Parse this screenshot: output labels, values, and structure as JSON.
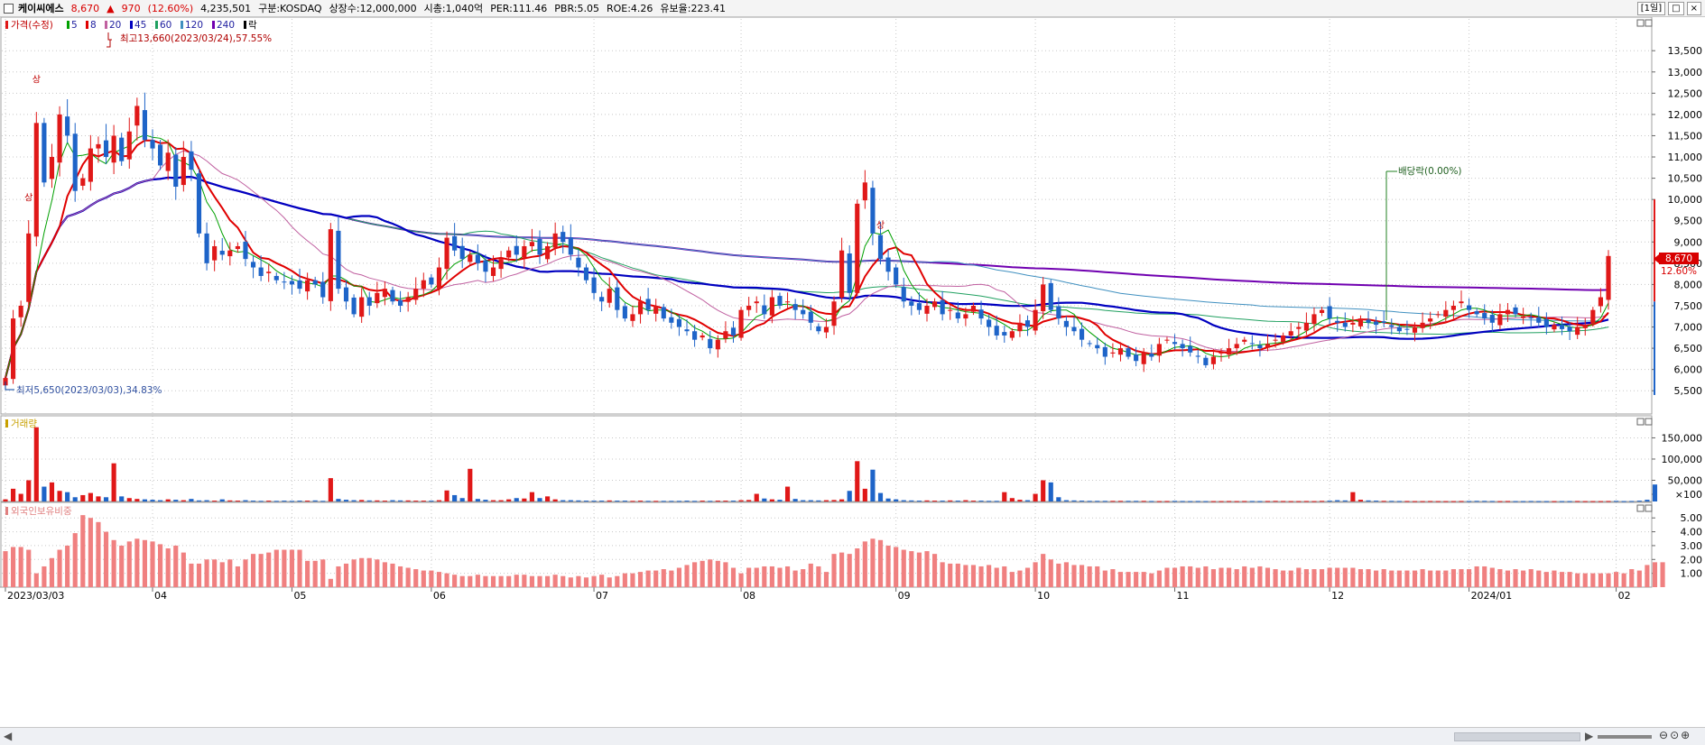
{
  "header": {
    "name": "케이씨에스",
    "price": "8,670",
    "change_arrow": "▲",
    "change": "970",
    "change_pct": "(12.60%)",
    "volume": "4,235,501",
    "market": "구분:KOSDAQ",
    "shares": "상장수:12,000,000",
    "mcap": "시총:1,040억",
    "per": "PER:111.46",
    "pbr": "PBR:5.05",
    "roe": "ROE:4.26",
    "float": "유보율:223.41",
    "period": "[1일]"
  },
  "legend": {
    "price": "가격(수정)",
    "items": [
      {
        "label": "5",
        "color": "#00a000"
      },
      {
        "label": "8",
        "color": "#e00000"
      },
      {
        "label": "20",
        "color": "#c060a0"
      },
      {
        "label": "45",
        "color": "#0000c0"
      },
      {
        "label": "60",
        "color": "#20a060"
      },
      {
        "label": "120",
        "color": "#4090c0"
      },
      {
        "label": "240",
        "color": "#7000b0"
      },
      {
        "label": "락",
        "color": "#000000"
      }
    ]
  },
  "annotations": {
    "high": "최고13,660(2023/03/24),57.55%",
    "low": "최저5,650(2023/03/03),34.83%",
    "dividend": "배당락(0.00%)",
    "limit_up": "상"
  },
  "panels": {
    "volume_title": "거래량",
    "foreign_title": "외국인보유비중"
  },
  "current_price_label": "8,670",
  "current_pct_label": "12.60%",
  "colors": {
    "up": "#e01818",
    "down": "#1e64c8",
    "grid": "#c8c8c8",
    "bar_foreign": "#f08080"
  },
  "chart_data": [
    {
      "type": "candlestick",
      "title": "가격(수정)",
      "y_ticks": [
        "5,500",
        "6,000",
        "6,500",
        "7,000",
        "7,500",
        "8,000",
        "8,500",
        "9,000",
        "9,500",
        "10,000",
        "10,500",
        "11,000",
        "11,500",
        "12,000",
        "12,500",
        "13,000",
        "13,500"
      ],
      "ylim": [
        5250,
        13950
      ],
      "x_labels": [
        "2023/03/03",
        "04",
        "05",
        "06",
        "07",
        "08",
        "09",
        "10",
        "11",
        "12",
        "2024/01",
        "02"
      ],
      "x_label_index": [
        0,
        19,
        37,
        55,
        76,
        95,
        115,
        133,
        151,
        171,
        189,
        208
      ],
      "closes": [
        5800,
        7200,
        7500,
        9200,
        11800,
        10400,
        11000,
        12000,
        11500,
        10200,
        10500,
        11200,
        11300,
        11000,
        11500,
        10900,
        11600,
        12200,
        11400,
        11200,
        10800,
        11100,
        10300,
        11000,
        10700,
        9200,
        8500,
        8900,
        8700,
        8800,
        8900,
        8600,
        8400,
        8200,
        8300,
        8100,
        8050,
        8000,
        7900,
        8100,
        8000,
        7700,
        9300,
        7900,
        7600,
        7300,
        7700,
        7500,
        7800,
        7900,
        7600,
        7500,
        7700,
        7900,
        8100,
        8000,
        8400,
        9100,
        8800,
        8600,
        8700,
        8500,
        8300,
        8400,
        8600,
        8800,
        8700,
        8900,
        9000,
        8700,
        8900,
        9200,
        9000,
        8700,
        8400,
        8100,
        7800,
        7600,
        7900,
        7400,
        7200,
        7300,
        7600,
        7400,
        7500,
        7200,
        7100,
        7000,
        6900,
        6700,
        6800,
        6500,
        6700,
        6900,
        6800,
        7400,
        7500,
        7600,
        7300,
        7700,
        7500,
        7600,
        7400,
        7300,
        7100,
        6900,
        7000,
        7600,
        8800,
        7800,
        9900,
        10400,
        9200,
        8600,
        8300,
        8000,
        7600,
        7500,
        7400,
        7500,
        7600,
        7300,
        7400,
        7200,
        7300,
        7500,
        7200,
        7000,
        6800,
        6800,
        6900,
        7100,
        7000,
        7400,
        8000,
        7400,
        7200,
        7000,
        6900,
        6700,
        6600,
        6500,
        6300,
        6400,
        6500,
        6300,
        6200,
        6400,
        6300,
        6600,
        6700,
        6600,
        6500,
        6400,
        6300,
        6100,
        6300,
        6400,
        6500,
        6600,
        6700,
        6600,
        6500,
        6600,
        6700,
        6800,
        6900,
        7000,
        7100,
        7300,
        7400,
        7200,
        7100,
        7000,
        7100,
        7200,
        7100,
        7050,
        7100,
        7000,
        6900,
        6950,
        7000,
        7100,
        7200,
        7300,
        7400,
        7500,
        7600,
        7400,
        7300,
        7200,
        7100,
        7300,
        7400,
        7300,
        7250,
        7200,
        7100,
        7000,
        7050,
        6950,
        6900,
        7000,
        7050,
        7400,
        7700,
        8670
      ],
      "limit_up_index": [
        4,
        3,
        113
      ]
    },
    {
      "type": "bar",
      "title": "거래량",
      "y_ticks": [
        "150,000",
        "100,000",
        "50,000",
        "×100"
      ],
      "ylim": [
        0,
        185000
      ],
      "values": [
        5000,
        30000,
        18000,
        50000,
        175000,
        35000,
        45000,
        25000,
        22000,
        10000,
        15000,
        20000,
        12000,
        10000,
        90000,
        12000,
        8000,
        6000,
        5000,
        4000,
        3000,
        5000,
        4000,
        3000,
        6000,
        2500,
        3000,
        2000,
        5000,
        2500,
        2000,
        3000,
        2000,
        1500,
        2000,
        1500,
        2000,
        1500,
        2000,
        2000,
        2500,
        1500,
        55000,
        6000,
        4000,
        3000,
        3500,
        2500,
        2500,
        2000,
        3000,
        2500,
        2500,
        2000,
        2000,
        2000,
        3000,
        26000,
        15000,
        8000,
        77000,
        6000,
        4000,
        3000,
        3000,
        5000,
        8000,
        7000,
        22000,
        8000,
        12000,
        5000,
        3000,
        3000,
        2500,
        2000,
        2000,
        2000,
        2500,
        2000,
        2000,
        1500,
        2000,
        1500,
        1500,
        1500,
        1500,
        1500,
        2000,
        1500,
        2000,
        1500,
        2000,
        2000,
        2000,
        3000,
        3500,
        18000,
        7000,
        5000,
        4000,
        35000,
        6000,
        3000,
        3000,
        2500,
        3000,
        3500,
        5000,
        25000,
        95000,
        30000,
        75000,
        20000,
        7000,
        5000,
        3000,
        2500,
        2000,
        2500,
        2000,
        2000,
        2500,
        2000,
        3000,
        2000,
        2000,
        1500,
        1500,
        22000,
        8000,
        4000,
        3000,
        18000,
        50000,
        45000,
        10000,
        3000,
        2500,
        2000,
        1500,
        1500,
        1500,
        1500,
        1500,
        1500,
        1500,
        1500,
        1200,
        1000,
        1200,
        1500,
        1200,
        1000,
        1200,
        1000,
        1000,
        1000,
        1200,
        1000,
        1200,
        1200,
        1000,
        1200,
        1500,
        1200,
        1000,
        1000,
        1200,
        1000,
        1500,
        2000,
        3000,
        2500,
        22000,
        4000,
        2500,
        2000,
        1500,
        1500,
        1200,
        1200,
        1000,
        1000,
        1200,
        1000,
        1000,
        1000,
        1200,
        1200,
        1500,
        1500,
        1200,
        1000,
        1200,
        1000,
        1000,
        1200,
        1000,
        1000,
        1000,
        1000,
        1000,
        1200,
        1000,
        1000,
        1000,
        1200,
        1500,
        1000,
        1200,
        2000,
        4000,
        40000
      ]
    },
    {
      "type": "bar",
      "title": "외국인보유비중",
      "y_ticks": [
        "5.00",
        "4.00",
        "3.00",
        "2.00",
        "1.00"
      ],
      "ylim": [
        0,
        5.6
      ],
      "values": [
        2.6,
        2.9,
        2.9,
        2.7,
        1.0,
        1.5,
        2.1,
        2.7,
        3.0,
        3.9,
        5.2,
        5.0,
        4.7,
        4.0,
        3.4,
        3.0,
        3.3,
        3.5,
        3.4,
        3.3,
        3.1,
        2.8,
        3.0,
        2.5,
        1.7,
        1.7,
        2.0,
        2.0,
        1.8,
        2.0,
        1.5,
        2.0,
        2.4,
        2.4,
        2.5,
        2.7,
        2.7,
        2.7,
        2.7,
        1.9,
        1.9,
        2.0,
        0.6,
        1.5,
        1.7,
        2.0,
        2.1,
        2.1,
        2.0,
        1.8,
        1.7,
        1.5,
        1.4,
        1.3,
        1.2,
        1.2,
        1.1,
        1.0,
        0.9,
        0.8,
        0.8,
        0.9,
        0.8,
        0.8,
        0.8,
        0.8,
        0.9,
        0.9,
        0.8,
        0.8,
        0.8,
        0.9,
        0.8,
        0.7,
        0.8,
        0.7,
        0.8,
        0.9,
        0.7,
        0.8,
        1.0,
        1.0,
        1.1,
        1.2,
        1.2,
        1.3,
        1.2,
        1.4,
        1.6,
        1.8,
        1.9,
        2.0,
        1.9,
        1.8,
        1.4,
        1.0,
        1.4,
        1.4,
        1.5,
        1.5,
        1.4,
        1.5,
        1.2,
        1.3,
        1.7,
        1.5,
        1.1,
        2.4,
        2.5,
        2.4,
        2.8,
        3.3,
        3.5,
        3.4,
        3.0,
        2.9,
        2.7,
        2.6,
        2.5,
        2.6,
        2.4,
        1.8,
        1.7,
        1.7,
        1.6,
        1.6,
        1.5,
        1.6,
        1.4,
        1.5,
        1.1,
        1.2,
        1.4,
        1.8,
        2.4,
        2.0,
        1.7,
        1.8,
        1.6,
        1.6,
        1.5,
        1.5,
        1.2,
        1.3,
        1.1,
        1.1,
        1.1,
        1.1,
        1.0,
        1.2,
        1.4,
        1.4,
        1.5,
        1.5,
        1.4,
        1.5,
        1.3,
        1.4,
        1.4,
        1.3,
        1.5,
        1.4,
        1.5,
        1.4,
        1.3,
        1.2,
        1.2,
        1.4,
        1.3,
        1.3,
        1.3,
        1.4,
        1.4,
        1.4,
        1.4,
        1.3,
        1.3,
        1.2,
        1.3,
        1.2,
        1.2,
        1.2,
        1.2,
        1.3,
        1.2,
        1.2,
        1.2,
        1.3,
        1.3,
        1.3,
        1.5,
        1.5,
        1.4,
        1.3,
        1.2,
        1.3,
        1.2,
        1.3,
        1.2,
        1.1,
        1.2,
        1.1,
        1.1,
        1.0,
        1.0,
        1.0,
        1.0,
        1.0,
        1.1,
        1.0,
        1.3,
        1.2,
        1.6,
        1.8,
        1.8
      ]
    }
  ]
}
